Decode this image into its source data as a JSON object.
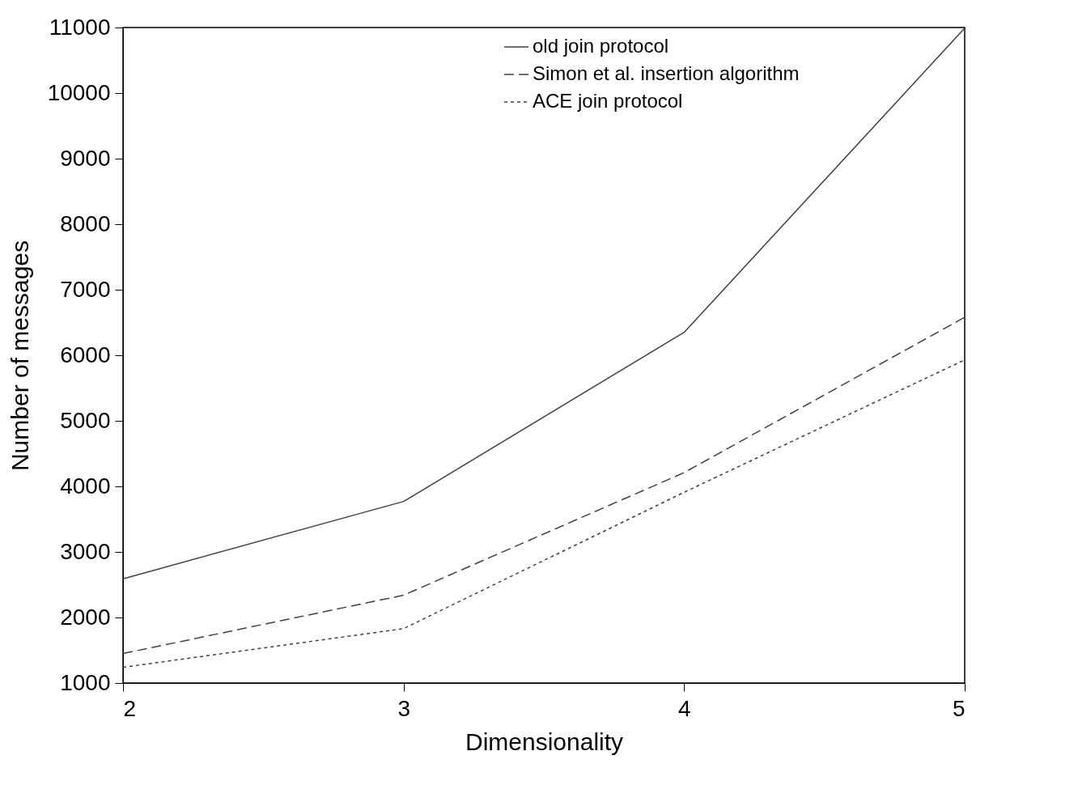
{
  "chart_data": {
    "type": "line",
    "xlabel": "Dimensionality",
    "ylabel": "Number of messages",
    "x": [
      2,
      3,
      4,
      5
    ],
    "xlim": [
      2,
      5
    ],
    "xticks": [
      2,
      3,
      4,
      5
    ],
    "ylim": [
      1000,
      11000
    ],
    "yticks": [
      1000,
      2000,
      3000,
      4000,
      5000,
      6000,
      7000,
      8000,
      9000,
      10000,
      11000
    ],
    "grid": false,
    "legend": "top right",
    "marker": "none",
    "series": [
      {
        "name": "old join protocol",
        "color": "#404040",
        "line_style": "solid",
        "values": [
          2590,
          3770,
          6350,
          10990
        ]
      },
      {
        "name": "Simon et al. insertion algorithm",
        "color": "#404040",
        "line_style": "dashed",
        "values": [
          1450,
          2340,
          4210,
          6580
        ]
      },
      {
        "name": "ACE join protocol",
        "color": "#404040",
        "line_style": "dotted",
        "values": [
          1240,
          1830,
          3910,
          5930
        ]
      }
    ]
  }
}
